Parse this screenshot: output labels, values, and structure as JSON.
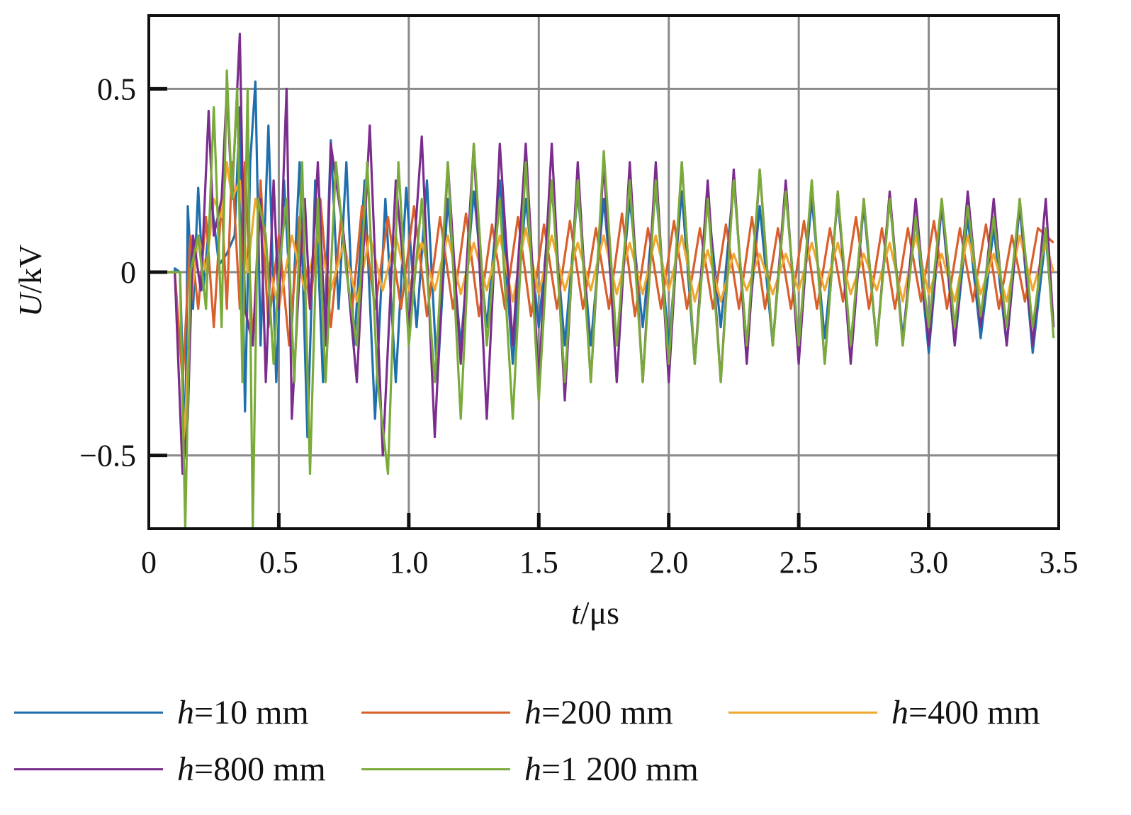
{
  "chart_data": {
    "type": "line",
    "xlabel": {
      "var": "t",
      "unit": "/μs"
    },
    "ylabel": {
      "var": "U",
      "unit": "/kV"
    },
    "xlim": [
      0,
      3.5
    ],
    "ylim": [
      -0.7,
      0.7
    ],
    "xticks": [
      0,
      0.5,
      1.0,
      1.5,
      2.0,
      2.5,
      3.0,
      3.5
    ],
    "xtick_labels": [
      "0",
      "0.5",
      "1.0",
      "1.5",
      "2.0",
      "2.5",
      "3.0",
      "3.5"
    ],
    "yticks": [
      -0.5,
      0,
      0.5
    ],
    "ytick_labels": [
      "−0.5",
      "0",
      "0.5"
    ],
    "grid": true,
    "legend_position": "bottom",
    "series": [
      {
        "name": "h=10 mm",
        "var": "h",
        "rest": "=10 mm",
        "color": "#1f6fae",
        "x": [
          0.1,
          0.12,
          0.14,
          0.15,
          0.17,
          0.19,
          0.21,
          0.24,
          0.27,
          0.3,
          0.33,
          0.35,
          0.37,
          0.39,
          0.41,
          0.43,
          0.46,
          0.49,
          0.52,
          0.55,
          0.58,
          0.61,
          0.64,
          0.67,
          0.7,
          0.73,
          0.76,
          0.79,
          0.83,
          0.87,
          0.91,
          0.95,
          0.99,
          1.03,
          1.07,
          1.11,
          1.15,
          1.2,
          1.25,
          1.3,
          1.35,
          1.4,
          1.45,
          1.5,
          1.55,
          1.6,
          1.65,
          1.7,
          1.75,
          1.8,
          1.85,
          1.9,
          1.95,
          2.0,
          2.05,
          2.1,
          2.15,
          2.2,
          2.25,
          2.3,
          2.35,
          2.4,
          2.45,
          2.5,
          2.55,
          2.6,
          2.65,
          2.7,
          2.75,
          2.8,
          2.85,
          2.9,
          2.95,
          3.0,
          3.05,
          3.1,
          3.15,
          3.2,
          3.25,
          3.3,
          3.35,
          3.4,
          3.45,
          3.48
        ],
        "y": [
          0.01,
          0.0,
          -0.5,
          0.18,
          -0.1,
          0.23,
          -0.05,
          0.2,
          0.02,
          0.05,
          0.1,
          0.45,
          -0.38,
          0.3,
          0.52,
          -0.2,
          0.4,
          -0.3,
          0.25,
          -0.15,
          0.3,
          -0.45,
          0.25,
          -0.3,
          0.36,
          -0.1,
          0.3,
          -0.2,
          0.25,
          -0.4,
          0.2,
          -0.3,
          0.23,
          -0.15,
          0.25,
          -0.3,
          0.2,
          -0.2,
          0.22,
          -0.15,
          0.25,
          -0.25,
          0.2,
          -0.15,
          0.23,
          -0.2,
          0.22,
          -0.2,
          0.2,
          -0.2,
          0.2,
          -0.15,
          0.23,
          -0.2,
          0.22,
          -0.25,
          0.2,
          -0.15,
          0.25,
          -0.2,
          0.18,
          -0.2,
          0.22,
          -0.2,
          0.2,
          -0.18,
          0.2,
          -0.2,
          0.18,
          -0.2,
          0.2,
          -0.18,
          0.15,
          -0.22,
          0.18,
          -0.2,
          0.15,
          -0.18,
          0.12,
          -0.2,
          0.18,
          -0.22,
          0.1,
          -0.15
        ]
      },
      {
        "name": "h=200 mm",
        "var": "h",
        "rest": "=200 mm",
        "color": "#d95f2b",
        "x": [
          0.1,
          0.13,
          0.16,
          0.19,
          0.22,
          0.25,
          0.28,
          0.3,
          0.32,
          0.35,
          0.37,
          0.4,
          0.43,
          0.46,
          0.5,
          0.54,
          0.58,
          0.62,
          0.66,
          0.7,
          0.74,
          0.78,
          0.82,
          0.87,
          0.92,
          0.97,
          1.02,
          1.07,
          1.12,
          1.17,
          1.22,
          1.27,
          1.32,
          1.37,
          1.42,
          1.47,
          1.52,
          1.57,
          1.62,
          1.67,
          1.72,
          1.77,
          1.82,
          1.87,
          1.92,
          1.97,
          2.02,
          2.07,
          2.12,
          2.17,
          2.22,
          2.27,
          2.32,
          2.37,
          2.42,
          2.47,
          2.52,
          2.57,
          2.62,
          2.67,
          2.72,
          2.77,
          2.82,
          2.87,
          2.92,
          2.97,
          3.02,
          3.07,
          3.12,
          3.17,
          3.22,
          3.27,
          3.32,
          3.37,
          3.42,
          3.48
        ],
        "y": [
          0.0,
          -0.3,
          0.1,
          -0.1,
          0.15,
          -0.15,
          0.2,
          -0.1,
          0.3,
          -0.1,
          0.3,
          -0.2,
          0.25,
          -0.15,
          0.1,
          -0.2,
          0.15,
          -0.1,
          0.2,
          -0.15,
          0.15,
          -0.12,
          0.18,
          -0.1,
          0.15,
          -0.1,
          0.18,
          -0.12,
          0.15,
          -0.1,
          0.16,
          -0.12,
          0.13,
          -0.1,
          0.15,
          -0.12,
          0.13,
          -0.1,
          0.14,
          -0.1,
          0.12,
          -0.1,
          0.16,
          -0.12,
          0.12,
          -0.1,
          0.14,
          -0.1,
          0.12,
          -0.1,
          0.13,
          -0.1,
          0.15,
          -0.1,
          0.12,
          -0.1,
          0.14,
          -0.1,
          0.12,
          -0.08,
          0.15,
          -0.1,
          0.12,
          -0.1,
          0.12,
          -0.08,
          0.14,
          -0.1,
          0.12,
          -0.08,
          0.13,
          -0.1,
          0.1,
          -0.08,
          0.12,
          0.08
        ]
      },
      {
        "name": "h=400 mm",
        "var": "h",
        "rest": "=400 mm",
        "color": "#f0a830",
        "x": [
          0.1,
          0.13,
          0.16,
          0.19,
          0.22,
          0.25,
          0.28,
          0.3,
          0.32,
          0.35,
          0.38,
          0.41,
          0.45,
          0.5,
          0.55,
          0.6,
          0.65,
          0.7,
          0.75,
          0.8,
          0.85,
          0.9,
          0.95,
          1.0,
          1.05,
          1.1,
          1.15,
          1.2,
          1.25,
          1.3,
          1.35,
          1.4,
          1.45,
          1.5,
          1.55,
          1.6,
          1.65,
          1.7,
          1.75,
          1.8,
          1.85,
          1.9,
          1.95,
          2.0,
          2.05,
          2.1,
          2.15,
          2.2,
          2.25,
          2.3,
          2.35,
          2.4,
          2.45,
          2.5,
          2.55,
          2.6,
          2.65,
          2.7,
          2.75,
          2.8,
          2.85,
          2.9,
          2.95,
          3.0,
          3.05,
          3.1,
          3.15,
          3.2,
          3.25,
          3.3,
          3.35,
          3.4,
          3.45,
          3.48
        ],
        "y": [
          0.0,
          -0.55,
          -0.1,
          0.1,
          0.0,
          0.2,
          0.15,
          0.3,
          0.2,
          0.25,
          0.0,
          0.2,
          0.05,
          -0.1,
          0.1,
          -0.05,
          0.1,
          -0.05,
          0.08,
          -0.08,
          0.1,
          -0.05,
          0.1,
          -0.05,
          0.08,
          -0.05,
          0.1,
          -0.06,
          0.08,
          -0.05,
          0.1,
          -0.08,
          0.12,
          -0.06,
          0.1,
          -0.05,
          0.08,
          -0.05,
          0.1,
          -0.06,
          0.08,
          -0.06,
          0.1,
          -0.05,
          0.1,
          -0.08,
          0.06,
          -0.08,
          0.05,
          -0.05,
          0.05,
          -0.06,
          0.05,
          -0.05,
          0.08,
          -0.05,
          0.08,
          -0.06,
          0.05,
          -0.05,
          0.08,
          -0.08,
          0.1,
          -0.06,
          0.05,
          -0.08,
          0.1,
          -0.06,
          0.05,
          -0.08,
          0.1,
          -0.05,
          0.08,
          0.0
        ]
      },
      {
        "name": "h=800 mm",
        "var": "h",
        "rest": "=800 mm",
        "color": "#7b2d8e",
        "x": [
          0.1,
          0.13,
          0.15,
          0.17,
          0.2,
          0.23,
          0.25,
          0.28,
          0.3,
          0.32,
          0.35,
          0.37,
          0.4,
          0.43,
          0.45,
          0.48,
          0.5,
          0.53,
          0.55,
          0.58,
          0.6,
          0.62,
          0.65,
          0.68,
          0.7,
          0.75,
          0.8,
          0.85,
          0.9,
          0.95,
          1.0,
          1.05,
          1.1,
          1.15,
          1.2,
          1.25,
          1.3,
          1.35,
          1.4,
          1.45,
          1.5,
          1.55,
          1.6,
          1.65,
          1.7,
          1.75,
          1.8,
          1.85,
          1.9,
          1.95,
          2.0,
          2.05,
          2.1,
          2.15,
          2.2,
          2.25,
          2.3,
          2.35,
          2.4,
          2.45,
          2.5,
          2.55,
          2.6,
          2.65,
          2.7,
          2.75,
          2.8,
          2.85,
          2.9,
          2.95,
          3.0,
          3.05,
          3.1,
          3.15,
          3.2,
          3.25,
          3.3,
          3.35,
          3.4,
          3.45,
          3.48
        ],
        "y": [
          0.0,
          -0.55,
          -0.4,
          0.1,
          -0.05,
          0.44,
          0.1,
          0.2,
          0.5,
          0.2,
          0.65,
          -0.1,
          -0.2,
          0.2,
          -0.3,
          0.25,
          -0.1,
          0.5,
          -0.4,
          0.0,
          0.2,
          -0.1,
          0.3,
          -0.2,
          0.35,
          0.1,
          -0.3,
          0.4,
          -0.5,
          0.25,
          -0.15,
          0.37,
          -0.45,
          0.3,
          -0.25,
          0.35,
          -0.4,
          0.35,
          -0.2,
          0.35,
          -0.3,
          0.35,
          -0.35,
          0.3,
          -0.3,
          0.3,
          -0.3,
          0.3,
          -0.3,
          0.3,
          -0.3,
          0.3,
          -0.25,
          0.25,
          -0.3,
          0.28,
          -0.25,
          0.28,
          -0.2,
          0.25,
          -0.25,
          0.25,
          -0.25,
          0.22,
          -0.25,
          0.2,
          -0.2,
          0.22,
          -0.2,
          0.2,
          -0.2,
          0.2,
          -0.2,
          0.22,
          -0.15,
          0.2,
          -0.2,
          0.2,
          -0.2,
          0.2,
          -0.15
        ]
      },
      {
        "name": "h=1 200 mm",
        "var": "h",
        "rest": "=1 200 mm",
        "color": "#7aab3a",
        "x": [
          0.1,
          0.12,
          0.14,
          0.16,
          0.19,
          0.22,
          0.25,
          0.28,
          0.3,
          0.32,
          0.34,
          0.36,
          0.38,
          0.4,
          0.42,
          0.45,
          0.48,
          0.5,
          0.53,
          0.56,
          0.59,
          0.62,
          0.65,
          0.68,
          0.72,
          0.76,
          0.8,
          0.84,
          0.88,
          0.92,
          0.96,
          1.0,
          1.05,
          1.1,
          1.15,
          1.2,
          1.25,
          1.3,
          1.35,
          1.4,
          1.45,
          1.5,
          1.55,
          1.6,
          1.65,
          1.7,
          1.75,
          1.8,
          1.85,
          1.9,
          1.95,
          2.0,
          2.05,
          2.1,
          2.15,
          2.2,
          2.25,
          2.3,
          2.35,
          2.4,
          2.45,
          2.5,
          2.55,
          2.6,
          2.65,
          2.7,
          2.75,
          2.8,
          2.85,
          2.9,
          2.95,
          3.0,
          3.05,
          3.1,
          3.15,
          3.2,
          3.25,
          3.3,
          3.35,
          3.4,
          3.45,
          3.48
        ],
        "y": [
          0.0,
          0.0,
          -0.7,
          0.0,
          0.1,
          -0.1,
          0.45,
          -0.15,
          0.55,
          0.2,
          0.5,
          -0.3,
          0.5,
          -0.7,
          0.2,
          0.1,
          -0.25,
          0.0,
          0.2,
          -0.3,
          0.3,
          -0.55,
          0.2,
          -0.3,
          0.3,
          0.0,
          -0.2,
          0.3,
          -0.3,
          -0.55,
          0.3,
          -0.2,
          0.2,
          -0.3,
          0.3,
          -0.4,
          0.35,
          -0.2,
          0.2,
          -0.4,
          0.3,
          -0.35,
          0.25,
          -0.3,
          0.25,
          -0.3,
          0.33,
          -0.2,
          0.25,
          -0.3,
          0.25,
          -0.25,
          0.3,
          -0.25,
          0.2,
          -0.3,
          0.25,
          -0.2,
          0.28,
          -0.2,
          0.22,
          -0.2,
          0.25,
          -0.25,
          0.22,
          -0.2,
          0.2,
          -0.2,
          0.2,
          -0.2,
          0.15,
          -0.15,
          0.2,
          -0.15,
          0.18,
          -0.12,
          0.15,
          -0.15,
          0.2,
          -0.15,
          0.12,
          -0.18
        ]
      }
    ]
  }
}
